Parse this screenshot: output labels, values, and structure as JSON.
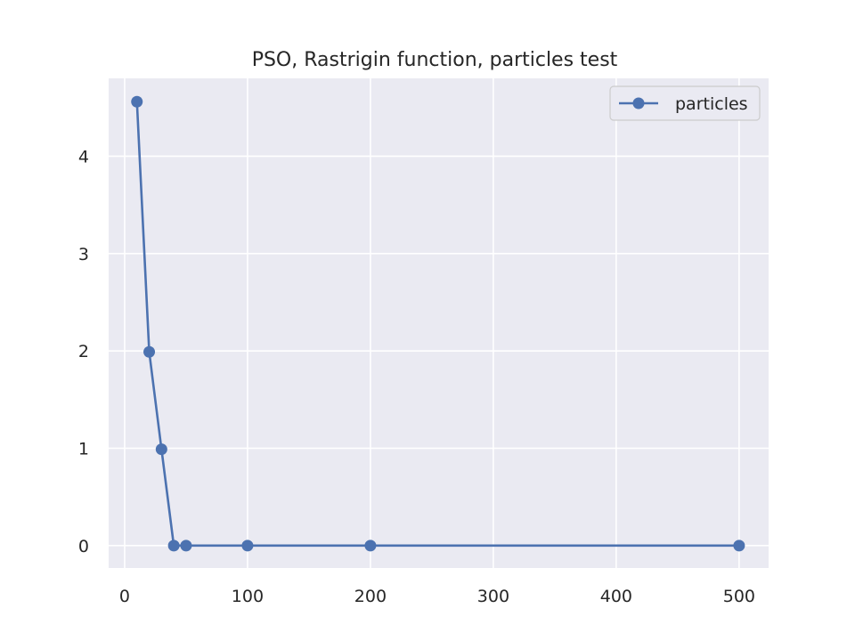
{
  "chart_data": {
    "type": "line",
    "title": "PSO, Rastrigin function, particles test",
    "xlabel": "",
    "ylabel": "",
    "xlim": [
      -13,
      524
    ],
    "ylim": [
      -0.23,
      4.8
    ],
    "x_ticks": [
      0,
      100,
      200,
      300,
      400,
      500
    ],
    "y_ticks": [
      0,
      1,
      2,
      3,
      4
    ],
    "grid": true,
    "legend_position": "top-right",
    "series": [
      {
        "name": "particles",
        "color": "#4c72b0",
        "marker": "circle",
        "x": [
          10,
          20,
          30,
          40,
          50,
          100,
          200,
          500
        ],
        "y": [
          4.56,
          1.99,
          0.99,
          0.0,
          0.0,
          0.0,
          0.0,
          0.0
        ]
      }
    ]
  },
  "colors": {
    "plot_background": "#eaeaf2",
    "grid": "#ffffff",
    "text": "#262626"
  }
}
